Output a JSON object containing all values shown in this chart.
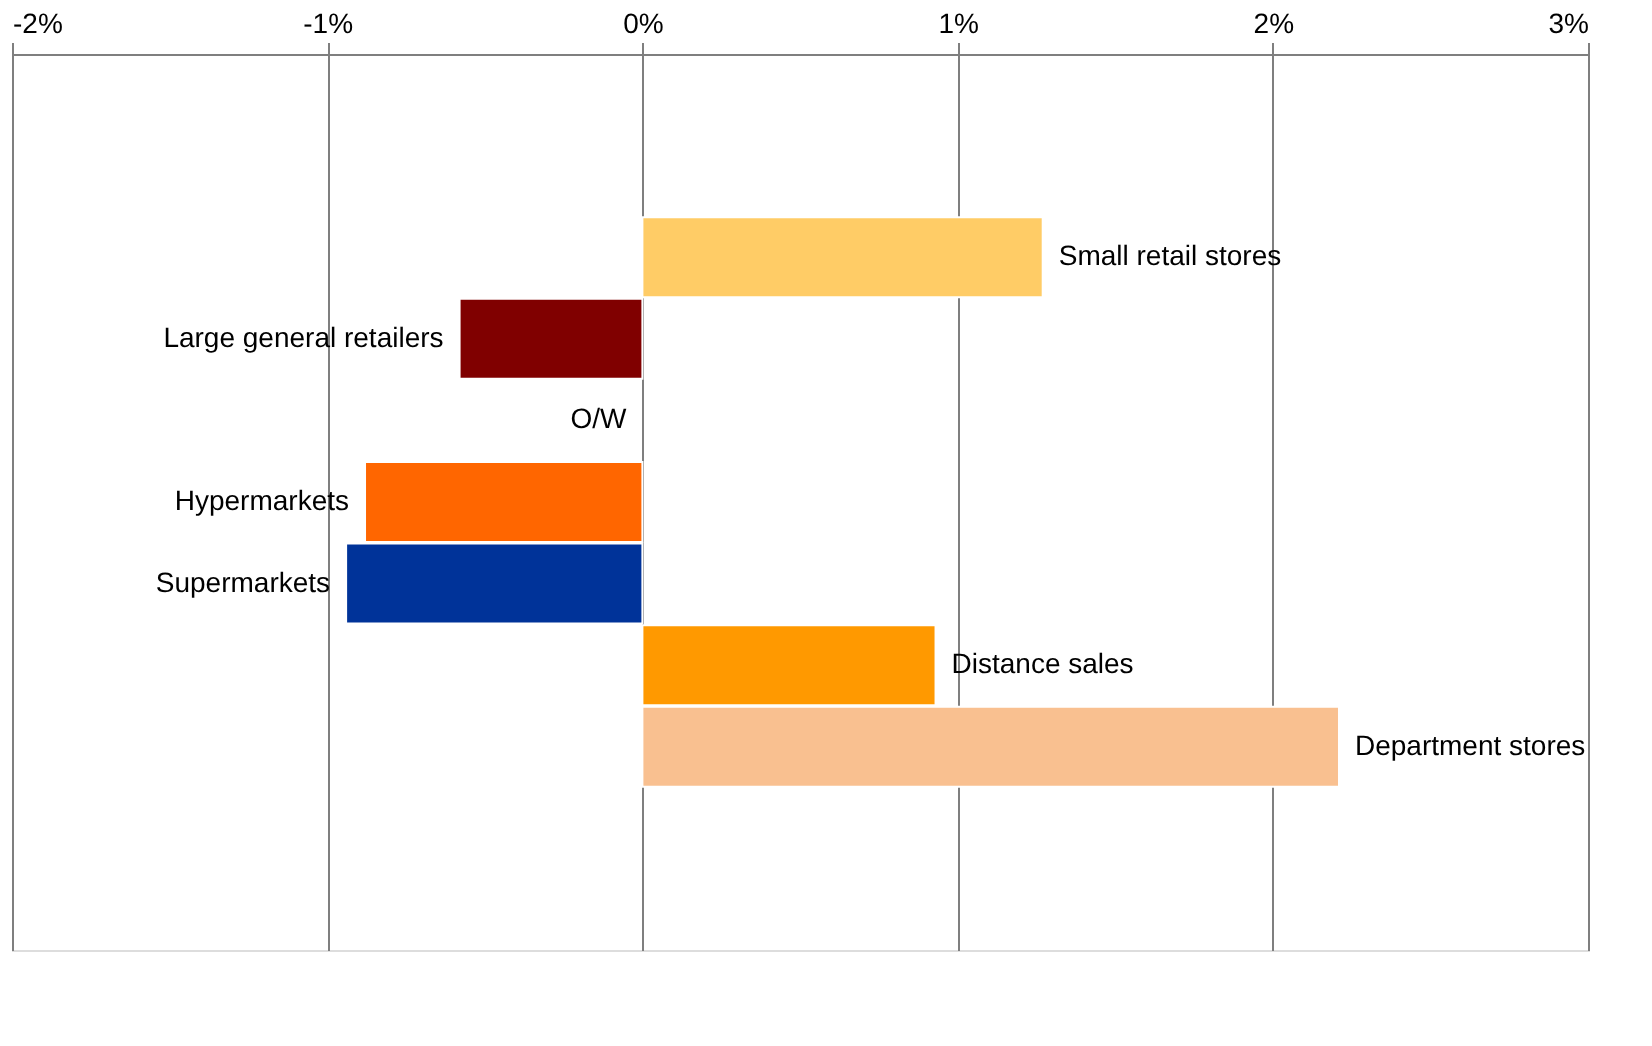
{
  "chart_data": {
    "type": "bar",
    "orientation": "horizontal",
    "categories": [
      "Small retail stores",
      "Large general retailers",
      "O/W",
      "Hypermarkets",
      "Supermarkets",
      "Distance sales",
      "Department stores"
    ],
    "values": [
      1.27,
      -0.58,
      null,
      -0.88,
      -0.94,
      0.93,
      2.21
    ],
    "colors": [
      "#ffcc66",
      "#800000",
      "#ffffff",
      "#ff6600",
      "#003399",
      "#ff9900",
      "#f9c090"
    ],
    "xlim": [
      -2,
      3
    ],
    "xticks": [
      {
        "value": -2,
        "label": "-2%"
      },
      {
        "value": -1,
        "label": "-1%"
      },
      {
        "value": 0,
        "label": "0%"
      },
      {
        "value": 1,
        "label": "1%"
      },
      {
        "value": 2,
        "label": "2%"
      },
      {
        "value": 3,
        "label": "3%"
      }
    ],
    "grid": "x"
  }
}
